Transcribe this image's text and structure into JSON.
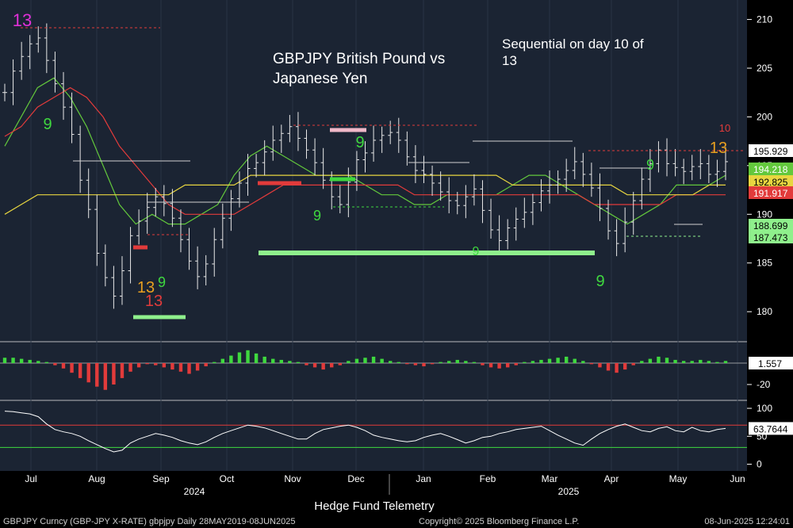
{
  "chart_data": [
    {
      "type": "candlestick",
      "panel": "price",
      "title": "GBPJPY British Pound vs Japanese Yen",
      "annotation": "Sequential on day 10 of 13",
      "y_ticks": [
        180,
        185,
        190,
        195,
        200,
        205,
        210
      ],
      "ylim": [
        177,
        212
      ],
      "x_ticks": [
        "Jul",
        "Aug",
        "Sep",
        "Oct",
        "Nov",
        "Dec",
        "Jan",
        "Feb",
        "Mar",
        "Apr",
        "May",
        "Jun"
      ],
      "x_year_labels": [
        "2024",
        "2025"
      ],
      "price_labels": [
        {
          "text": "195.929",
          "value": 195.929,
          "color": "#ffffff"
        },
        {
          "text": "194.218",
          "value": 194.218,
          "color": "#63c83c"
        },
        {
          "text": "192.825",
          "value": 192.825,
          "color": "#e8d640"
        },
        {
          "text": "191.917",
          "value": 191.917,
          "color": "#e23b3b"
        },
        {
          "text": "188.699",
          "value": 188.699,
          "color": "#8ff08c"
        },
        {
          "text": "187.473",
          "value": 187.473,
          "color": "#8ff08c"
        }
      ],
      "close_series": [
        202.5,
        204.7,
        206.2,
        207.5,
        208.1,
        205.8,
        203.4,
        201.0,
        198.2,
        193.5,
        190.5,
        186.0,
        183.5,
        181.6,
        184.2,
        187.8,
        189.3,
        190.7,
        191.8,
        191.1,
        189.6,
        187.4,
        185.2,
        183.6,
        184.9,
        187.4,
        189.6,
        191.6,
        193.2,
        194.7,
        195.3,
        196.4,
        197.6,
        198.3,
        199.0,
        197.8,
        196.6,
        195.3,
        193.5,
        191.8,
        191.0,
        193.3,
        195.6,
        196.3,
        197.6,
        198.1,
        198.4,
        197.6,
        195.9,
        194.5,
        194.1,
        193.2,
        192.3,
        191.4,
        190.9,
        191.8,
        192.6,
        190.4,
        188.4,
        187.3,
        188.6,
        189.5,
        190.2,
        191.2,
        192.4,
        193.0,
        193.6,
        194.5,
        195.4,
        194.1,
        192.7,
        190.6,
        188.3,
        187.0,
        189.2,
        191.4,
        193.6,
        195.2,
        196.6,
        195.2,
        194.8,
        194.4,
        194.9,
        195.2,
        194.1,
        194.4,
        195.4
      ],
      "moving_averages": [
        {
          "name": "",
          "color": "#63c83c",
          "values": [
            197,
            200,
            203,
            204,
            202,
            199,
            195,
            191,
            189,
            190,
            189,
            189,
            190,
            191,
            194,
            196,
            197,
            196,
            195,
            194,
            194,
            194,
            193,
            192,
            192,
            191,
            191,
            192,
            192,
            192,
            192,
            193,
            194,
            194,
            193,
            192,
            191,
            190,
            189,
            190,
            191,
            193,
            193,
            193,
            194
          ]
        },
        {
          "name": "",
          "color": "#e23b3b",
          "values": [
            198,
            199,
            201,
            202,
            203,
            202,
            200,
            197,
            195,
            193,
            191,
            190,
            190,
            190,
            190,
            191,
            192,
            193,
            193,
            193,
            193,
            193,
            193,
            193,
            193,
            192,
            192,
            192,
            192,
            192,
            192,
            192,
            192,
            192,
            192,
            192,
            191,
            191,
            191,
            191,
            191,
            192,
            192,
            192,
            192
          ]
        },
        {
          "name": "",
          "color": "#e8d640",
          "values": [
            190,
            191,
            192,
            192,
            192,
            192,
            192,
            192,
            192,
            192,
            192,
            193,
            193,
            193,
            193,
            194,
            194,
            194,
            194,
            194,
            194,
            194,
            194,
            194,
            194,
            194,
            194,
            194,
            194,
            194,
            194,
            193,
            193,
            193,
            193,
            193,
            193,
            193,
            192,
            192,
            192,
            192,
            192,
            193,
            193
          ]
        }
      ],
      "pattern_labels": [
        {
          "text": "13",
          "color": "#e030d8"
        },
        {
          "text": "13",
          "color": "#e23b3b"
        },
        {
          "text": "13",
          "color": "#e8a020"
        },
        {
          "text": "13",
          "color": "#e8a020"
        },
        {
          "text": "9",
          "color": "#3fd83f"
        },
        {
          "text": "9",
          "color": "#3fd83f"
        },
        {
          "text": "9",
          "color": "#3fd83f"
        },
        {
          "text": "9",
          "color": "#3fd83f"
        },
        {
          "text": "9",
          "color": "#3fd83f"
        },
        {
          "text": "9",
          "color": "#3fd83f"
        },
        {
          "text": "9",
          "color": "#3fd83f"
        },
        {
          "text": "10",
          "color": "#e23b3b"
        }
      ]
    },
    {
      "type": "histogram",
      "panel": "oscillator",
      "y_ticks": [
        -20
      ],
      "last_value_label": "1.557",
      "values": [
        5,
        5,
        4,
        3,
        2,
        1,
        -2,
        -5,
        -9,
        -14,
        -18,
        -22,
        -25,
        -20,
        -14,
        -8,
        -4,
        -1,
        -2,
        -4,
        -6,
        -8,
        -10,
        -7,
        -3,
        1,
        4,
        7,
        10,
        12,
        9,
        6,
        4,
        3,
        2,
        1,
        -2,
        -4,
        -6,
        -4,
        -2,
        2,
        4,
        5,
        6,
        4,
        2,
        1,
        -1,
        -2,
        -3,
        -1,
        1,
        2,
        3,
        2,
        1,
        -2,
        -4,
        -5,
        -4,
        -2,
        1,
        2,
        3,
        4,
        5,
        6,
        4,
        2,
        -1,
        -4,
        -7,
        -9,
        -6,
        -2,
        2,
        4,
        6,
        5,
        3,
        2,
        2,
        3,
        2,
        1,
        2
      ]
    },
    {
      "type": "line",
      "panel": "rsi",
      "y_ticks": [
        0,
        50,
        100
      ],
      "ylim": [
        -12,
        110
      ],
      "overbought": 70,
      "oversold": 30,
      "last_value_label": "63.7644",
      "values": [
        95,
        94,
        92,
        90,
        85,
        72,
        62,
        58,
        55,
        50,
        42,
        35,
        28,
        22,
        25,
        38,
        45,
        50,
        55,
        52,
        48,
        42,
        38,
        35,
        40,
        48,
        55,
        60,
        65,
        70,
        68,
        65,
        60,
        55,
        50,
        45,
        45,
        55,
        62,
        65,
        68,
        70,
        66,
        60,
        52,
        48,
        45,
        42,
        40,
        42,
        48,
        52,
        55,
        50,
        44,
        38,
        42,
        48,
        50,
        55,
        58,
        62,
        64,
        66,
        68,
        60,
        52,
        45,
        38,
        34,
        45,
        55,
        62,
        68,
        72,
        66,
        60,
        58,
        64,
        67,
        60,
        58,
        66,
        60,
        58,
        62,
        64
      ]
    }
  ],
  "footer": {
    "watermark": "Hedge Fund Telemetry",
    "security": "GBPJPY Curncy (GBP-JPY X-RATE) gbpjpy  Daily 28MAY2019-08JUN2025",
    "copyright": "Copyright© 2025 Bloomberg Finance L.P.",
    "timestamp": "08-Jun-2025 12:24:01"
  },
  "colors": {
    "background": "#1b2433",
    "axis_panel": "#000000",
    "up_candle": "#ffffff",
    "hist_up": "#3fd83f",
    "hist_down": "#e23b3b",
    "rsi_line": "#ffffff"
  }
}
